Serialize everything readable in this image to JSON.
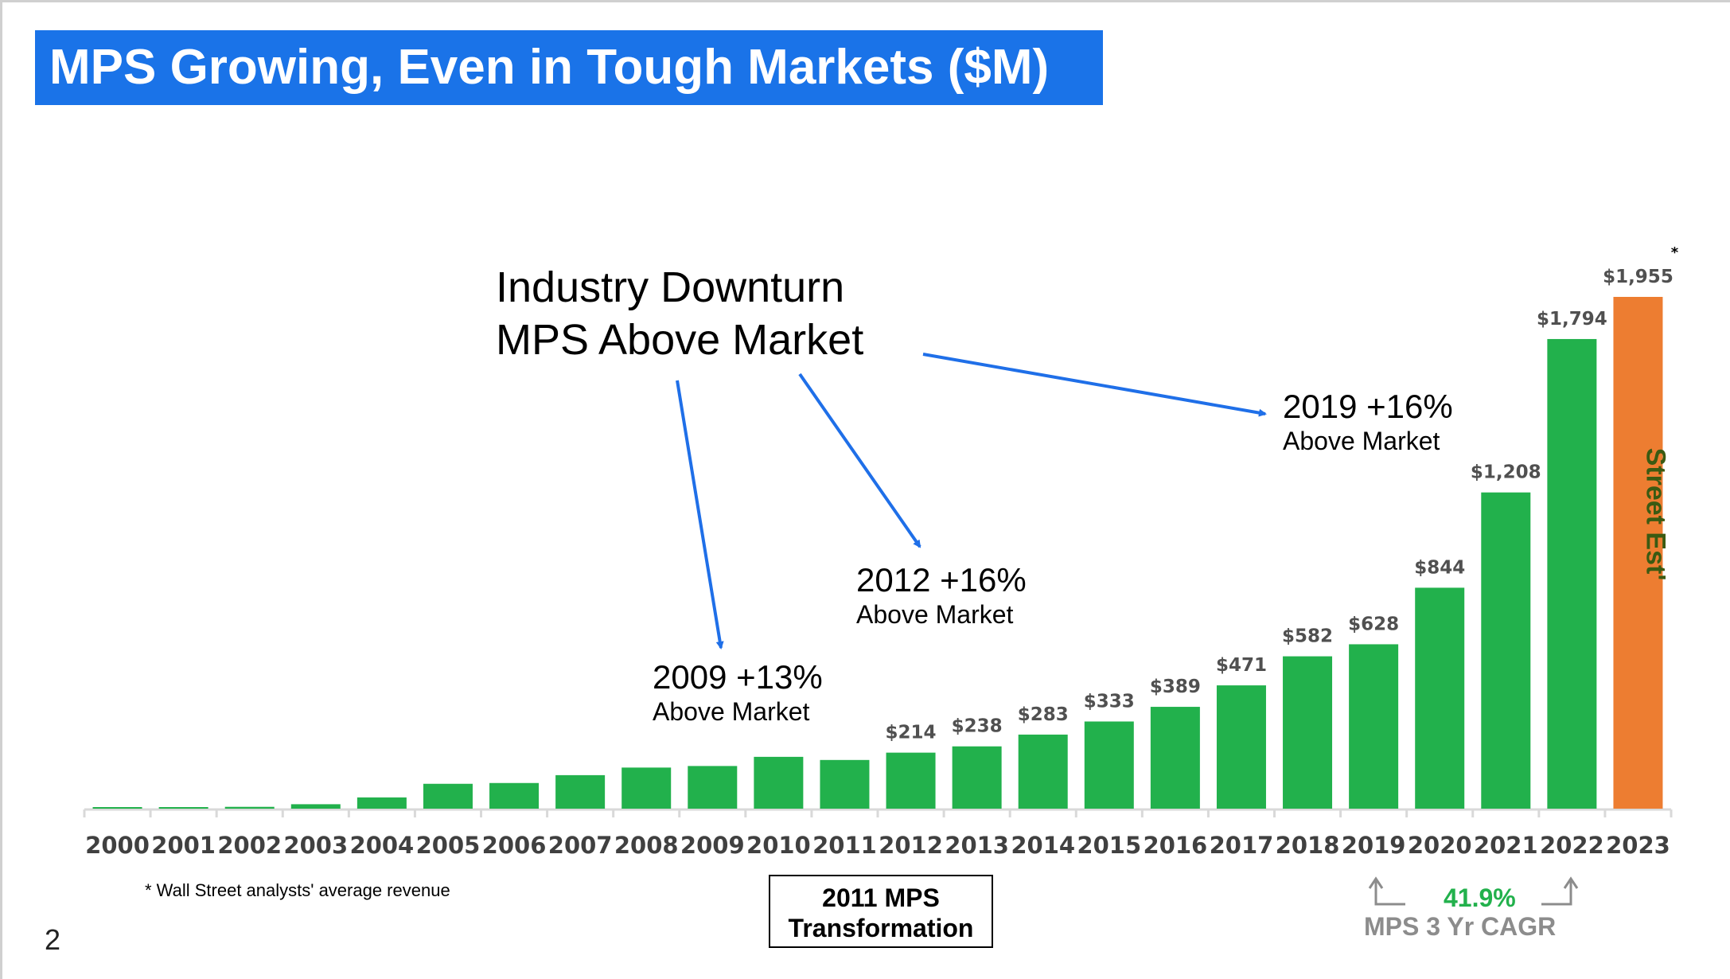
{
  "title": "MPS Growing, Even in Tough Markets ($M)",
  "page_number": "2",
  "footnote": "* Wall Street analysts' average revenue",
  "annotations": {
    "industry_line1": "Industry Downturn",
    "industry_line2": "MPS Above Market",
    "a2009_head": "2009 +13%",
    "a2009_sub": "Above Market",
    "a2012_head": "2012 +16%",
    "a2012_sub": "Above Market",
    "a2019_head": "2019 +16%",
    "a2019_sub": "Above Market"
  },
  "transformation_box": {
    "line1": "2011 MPS",
    "line2": "Transformation"
  },
  "cagr": {
    "value": "41.9%",
    "label": "MPS 3 Yr CAGR"
  },
  "colors": {
    "title_bg": "#1a73e8",
    "bar": "#22b14c",
    "estimate_bar": "#ed7d31",
    "estimate_text": "#3a5a12",
    "arrow": "#1f6fe8",
    "axis": "#d9d9d9",
    "tick_label": "#404040",
    "value_label": "#505050",
    "cagr_value": "#22b14c",
    "cagr_label": "#8c8c8c"
  },
  "chart_data": {
    "type": "bar",
    "title": "MPS Growing, Even in Tough Markets ($M)",
    "xlabel": "",
    "ylabel": "",
    "ylim": [
      0,
      2100
    ],
    "grid": false,
    "categories": [
      "2000",
      "2001",
      "2002",
      "2003",
      "2004",
      "2005",
      "2006",
      "2007",
      "2008",
      "2009",
      "2010",
      "2011",
      "2012",
      "2013",
      "2014",
      "2015",
      "2016",
      "2017",
      "2018",
      "2019",
      "2020",
      "2021",
      "2022",
      "2023"
    ],
    "values": [
      2,
      6,
      7,
      17,
      43,
      95,
      98,
      128,
      157,
      163,
      198,
      186,
      214,
      238,
      283,
      333,
      389,
      471,
      582,
      628,
      844,
      1208,
      1794,
      1955
    ],
    "labels": [
      "",
      "",
      "",
      "",
      "",
      "",
      "",
      "",
      "",
      "",
      "",
      "",
      "$214",
      "$238",
      "$283",
      "$333",
      "$389",
      "$471",
      "$582",
      "$628",
      "$844",
      "$1,208",
      "$1,794",
      "$1,955"
    ],
    "estimate_index": 23,
    "estimate_marker": "*",
    "estimate_bar_text": "Street Est'"
  }
}
